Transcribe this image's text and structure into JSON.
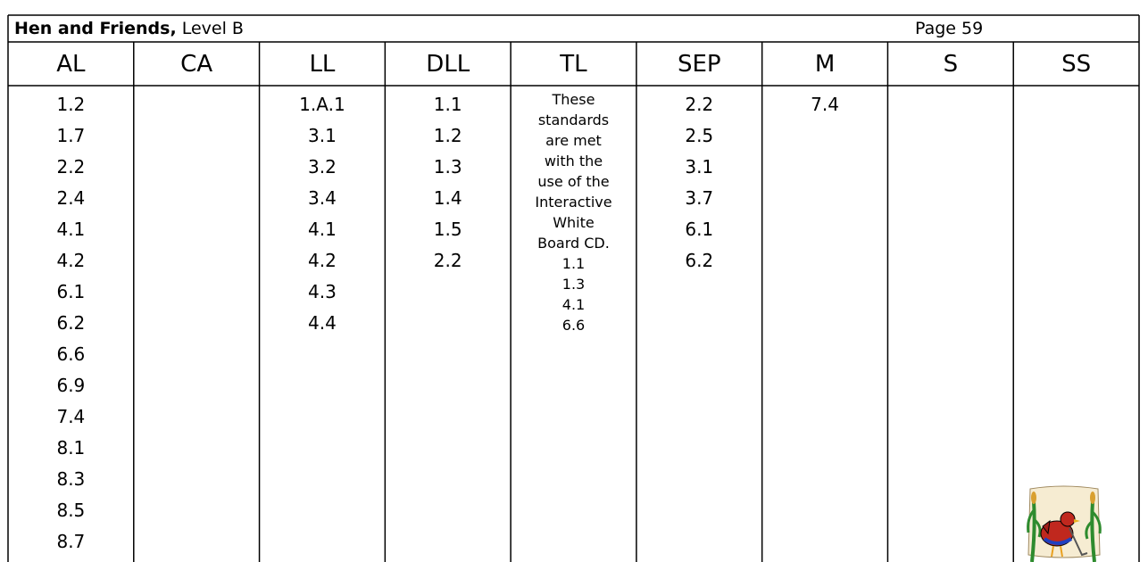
{
  "header": {
    "title_bold": "Hen and Friends,",
    "title_rest": "Level B",
    "page": "Page 59"
  },
  "table": {
    "columns": [
      {
        "header": "AL",
        "items": [
          "1.2",
          "1.7",
          "2.2",
          "2.4",
          "4.1",
          "4.2",
          "6.1",
          "6.2",
          "6.6",
          "6.9",
          "7.4",
          "8.1",
          "8.3",
          "8.5",
          "8.7"
        ]
      },
      {
        "header": "CA",
        "items": []
      },
      {
        "header": "LL",
        "items": [
          "1.A.1",
          "3.1",
          "3.2",
          "3.4",
          "4.1",
          "4.2",
          "4.3",
          "4.4"
        ]
      },
      {
        "header": "DLL",
        "items": [
          "1.1",
          "1.2",
          "1.3",
          "1.4",
          "1.5",
          "2.2"
        ]
      },
      {
        "header": "TL",
        "items": [
          "These",
          "standards",
          "are met",
          "with the",
          "use of the",
          "Interactive",
          "White",
          "Board CD.",
          "1.1",
          "1.3",
          "4.1",
          "6.6"
        ]
      },
      {
        "header": "SEP",
        "items": [
          "2.2",
          "2.5",
          "3.1",
          "3.7",
          "6.1",
          "6.2"
        ]
      },
      {
        "header": "M",
        "items": [
          "7.4"
        ]
      },
      {
        "header": "S",
        "items": []
      },
      {
        "header": "SS",
        "items": []
      }
    ]
  }
}
